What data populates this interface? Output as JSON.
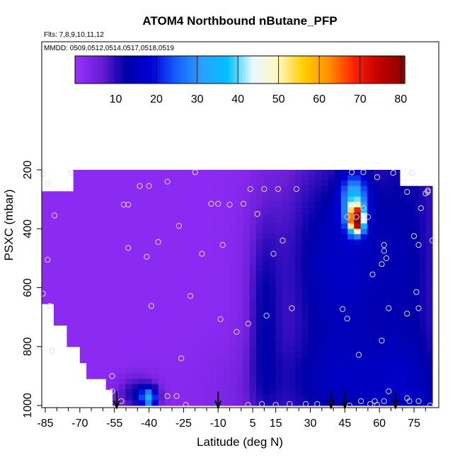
{
  "chart_data": {
    "type": "heatmap",
    "title": "ATOM4 Northbound nButane_PFP",
    "subtitle_flights": "Flts: 7,8,9,10,11,12",
    "subtitle_dates": "MMDD: 0509,0512,0514,0517,0518,0519",
    "xlabel": "Latitude (deg N)",
    "ylabel": "PSXC (mbar)",
    "xlim": [
      -87,
      83
    ],
    "ylim": [
      1010,
      40
    ],
    "x_ticks": [
      -85,
      -70,
      -55,
      -40,
      -25,
      -10,
      5,
      15,
      30,
      45,
      60,
      75
    ],
    "x_minor_ticks": [
      -80,
      -75,
      -65,
      -60,
      -50,
      -45,
      -35,
      -30,
      -20,
      -15,
      -5,
      0,
      10,
      20,
      25,
      35,
      40,
      50,
      55,
      65,
      70,
      80
    ],
    "y_ticks": [
      200,
      400,
      600,
      800,
      1000
    ],
    "colorbar": {
      "min": 0,
      "max": 81,
      "tick_values": [
        10,
        20,
        30,
        40,
        50,
        60,
        70,
        80
      ],
      "colors": [
        "#9b30ff",
        "#6a1fd6",
        "#0000a8",
        "#0000d8",
        "#1560ff",
        "#2aa0ff",
        "#00c0ff",
        "#e8f8ff",
        "#fff8c0",
        "#ffd000",
        "#ff9000",
        "#ff2000",
        "#c00000",
        "#8b0000"
      ]
    },
    "sample_points": [
      [
        -86,
        215
      ],
      [
        -84,
        248
      ],
      [
        -81,
        355
      ],
      [
        -84,
        505
      ],
      [
        -86,
        620
      ],
      [
        -83,
        662
      ],
      [
        -82,
        815
      ],
      [
        -74,
        210
      ],
      [
        -56,
        900
      ],
      [
        -56,
        952
      ],
      [
        -52,
        985
      ],
      [
        -51,
        318
      ],
      [
        -49,
        318
      ],
      [
        -49,
        465
      ],
      [
        -44,
        255
      ],
      [
        -40,
        255
      ],
      [
        -41,
        495
      ],
      [
        -39,
        662
      ],
      [
        -36,
        445
      ],
      [
        -32,
        240
      ],
      [
        -32,
        968
      ],
      [
        -28,
        968
      ],
      [
        -27,
        390
      ],
      [
        -26,
        840
      ],
      [
        -24,
        998
      ],
      [
        -22,
        628
      ],
      [
        -20,
        208
      ],
      [
        -17,
        485
      ],
      [
        -13,
        315
      ],
      [
        -10,
        315
      ],
      [
        -9,
        707
      ],
      [
        -8,
        455
      ],
      [
        -5,
        318
      ],
      [
        -2,
        750
      ],
      [
        1,
        315
      ],
      [
        3,
        998
      ],
      [
        3,
        722
      ],
      [
        4,
        265
      ],
      [
        7,
        350
      ],
      [
        9,
        995
      ],
      [
        10,
        265
      ],
      [
        11,
        695
      ],
      [
        14,
        485
      ],
      [
        15,
        998
      ],
      [
        16,
        265
      ],
      [
        18,
        440
      ],
      [
        21,
        995
      ],
      [
        22,
        670
      ],
      [
        24,
        265
      ],
      [
        28,
        995
      ],
      [
        33,
        995
      ],
      [
        44,
        673
      ],
      [
        46,
        705
      ],
      [
        46,
        360
      ],
      [
        47,
        1000
      ],
      [
        48,
        208
      ],
      [
        50,
        360
      ],
      [
        51,
        828
      ],
      [
        52,
        985
      ],
      [
        53,
        208
      ],
      [
        53,
        330
      ],
      [
        55,
        360
      ],
      [
        56,
        995
      ],
      [
        57,
        555
      ],
      [
        58,
        985
      ],
      [
        59,
        225
      ],
      [
        59,
        998
      ],
      [
        61,
        520
      ],
      [
        61,
        780
      ],
      [
        62,
        455
      ],
      [
        62,
        985
      ],
      [
        62,
        475
      ],
      [
        63,
        500
      ],
      [
        64,
        952
      ],
      [
        64,
        670
      ],
      [
        66,
        210
      ],
      [
        72,
        688
      ],
      [
        72,
        975
      ],
      [
        72,
        275
      ],
      [
        73,
        985
      ],
      [
        74,
        210
      ],
      [
        75,
        425
      ],
      [
        76,
        615
      ],
      [
        77,
        670
      ],
      [
        77,
        985
      ],
      [
        78,
        330
      ],
      [
        80,
        280
      ],
      [
        81,
        270
      ],
      [
        81,
        275
      ],
      [
        82,
        1000
      ],
      [
        83,
        440
      ],
      [
        77,
        455
      ]
    ],
    "arrows_at_latitude": [
      -54,
      -10,
      39,
      45,
      67
    ]
  }
}
